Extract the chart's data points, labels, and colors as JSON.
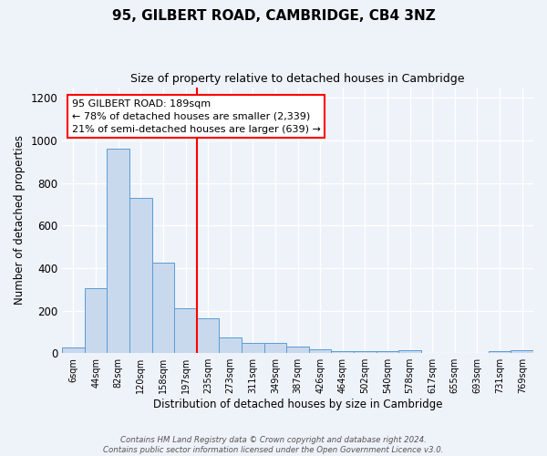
{
  "title1": "95, GILBERT ROAD, CAMBRIDGE, CB4 3NZ",
  "title2": "Size of property relative to detached houses in Cambridge",
  "xlabel": "Distribution of detached houses by size in Cambridge",
  "ylabel": "Number of detached properties",
  "categories": [
    "6sqm",
    "44sqm",
    "82sqm",
    "120sqm",
    "158sqm",
    "197sqm",
    "235sqm",
    "273sqm",
    "311sqm",
    "349sqm",
    "387sqm",
    "426sqm",
    "464sqm",
    "502sqm",
    "540sqm",
    "578sqm",
    "617sqm",
    "655sqm",
    "693sqm",
    "731sqm",
    "769sqm"
  ],
  "values": [
    25,
    305,
    960,
    730,
    425,
    210,
    165,
    75,
    48,
    48,
    30,
    20,
    10,
    10,
    10,
    14,
    0,
    0,
    0,
    10,
    14
  ],
  "bar_color": "#c8d9ed",
  "bar_edge_color": "#5b9bd5",
  "vline_x": 5.5,
  "vline_color": "red",
  "annotation_text": "95 GILBERT ROAD: 189sqm\n← 78% of detached houses are smaller (2,339)\n21% of semi-detached houses are larger (639) →",
  "annotation_box_color": "white",
  "annotation_box_edge": "red",
  "footer": "Contains HM Land Registry data © Crown copyright and database right 2024.\nContains public sector information licensed under the Open Government Licence v3.0.",
  "ylim": [
    0,
    1250
  ],
  "background_color": "#eef2f9",
  "grid_color": "white"
}
